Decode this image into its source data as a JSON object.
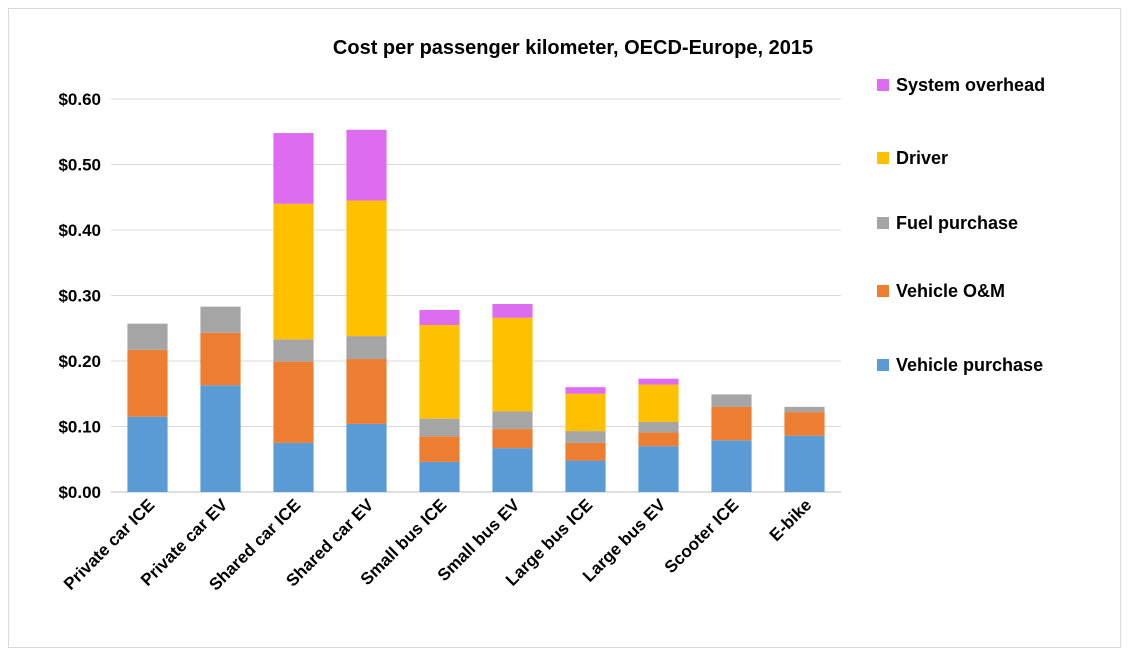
{
  "chart_data": {
    "type": "bar",
    "stacked": true,
    "title": "Cost per passenger kilometer, OECD-Europe, 2015",
    "xlabel": "",
    "ylabel": "",
    "ylim": [
      0,
      0.6
    ],
    "yticks": [
      "$0.00",
      "$0.10",
      "$0.20",
      "$0.30",
      "$0.40",
      "$0.50",
      "$0.60"
    ],
    "grid": true,
    "legend_position": "right",
    "categories": [
      "Private car ICE",
      "Private car EV",
      "Shared car ICE",
      "Shared car EV",
      "Small bus ICE",
      "Small bus EV",
      "Large bus ICE",
      "Large bus EV",
      "Scooter ICE",
      "E-bike"
    ],
    "series": [
      {
        "name": "Vehicle purchase",
        "color": "#5b9bd5",
        "values": [
          0.115,
          0.163,
          0.075,
          0.104,
          0.046,
          0.067,
          0.048,
          0.07,
          0.079,
          0.086
        ]
      },
      {
        "name": "Vehicle O&M",
        "color": "#ed7d31",
        "values": [
          0.102,
          0.08,
          0.124,
          0.099,
          0.039,
          0.029,
          0.027,
          0.021,
          0.051,
          0.036
        ]
      },
      {
        "name": "Fuel purchase",
        "color": "#a5a5a5",
        "values": [
          0.04,
          0.04,
          0.034,
          0.035,
          0.027,
          0.027,
          0.018,
          0.016,
          0.019,
          0.008
        ]
      },
      {
        "name": "Driver",
        "color": "#ffc000",
        "values": [
          0,
          0,
          0.207,
          0.207,
          0.143,
          0.143,
          0.057,
          0.057,
          0,
          0
        ]
      },
      {
        "name": "System overhead",
        "color": "#dd6cf0",
        "values": [
          0,
          0,
          0.108,
          0.108,
          0.023,
          0.021,
          0.01,
          0.009,
          0,
          0
        ]
      }
    ],
    "legend_order": [
      "System overhead",
      "Driver",
      "Fuel purchase",
      "Vehicle O&M",
      "Vehicle purchase"
    ]
  }
}
